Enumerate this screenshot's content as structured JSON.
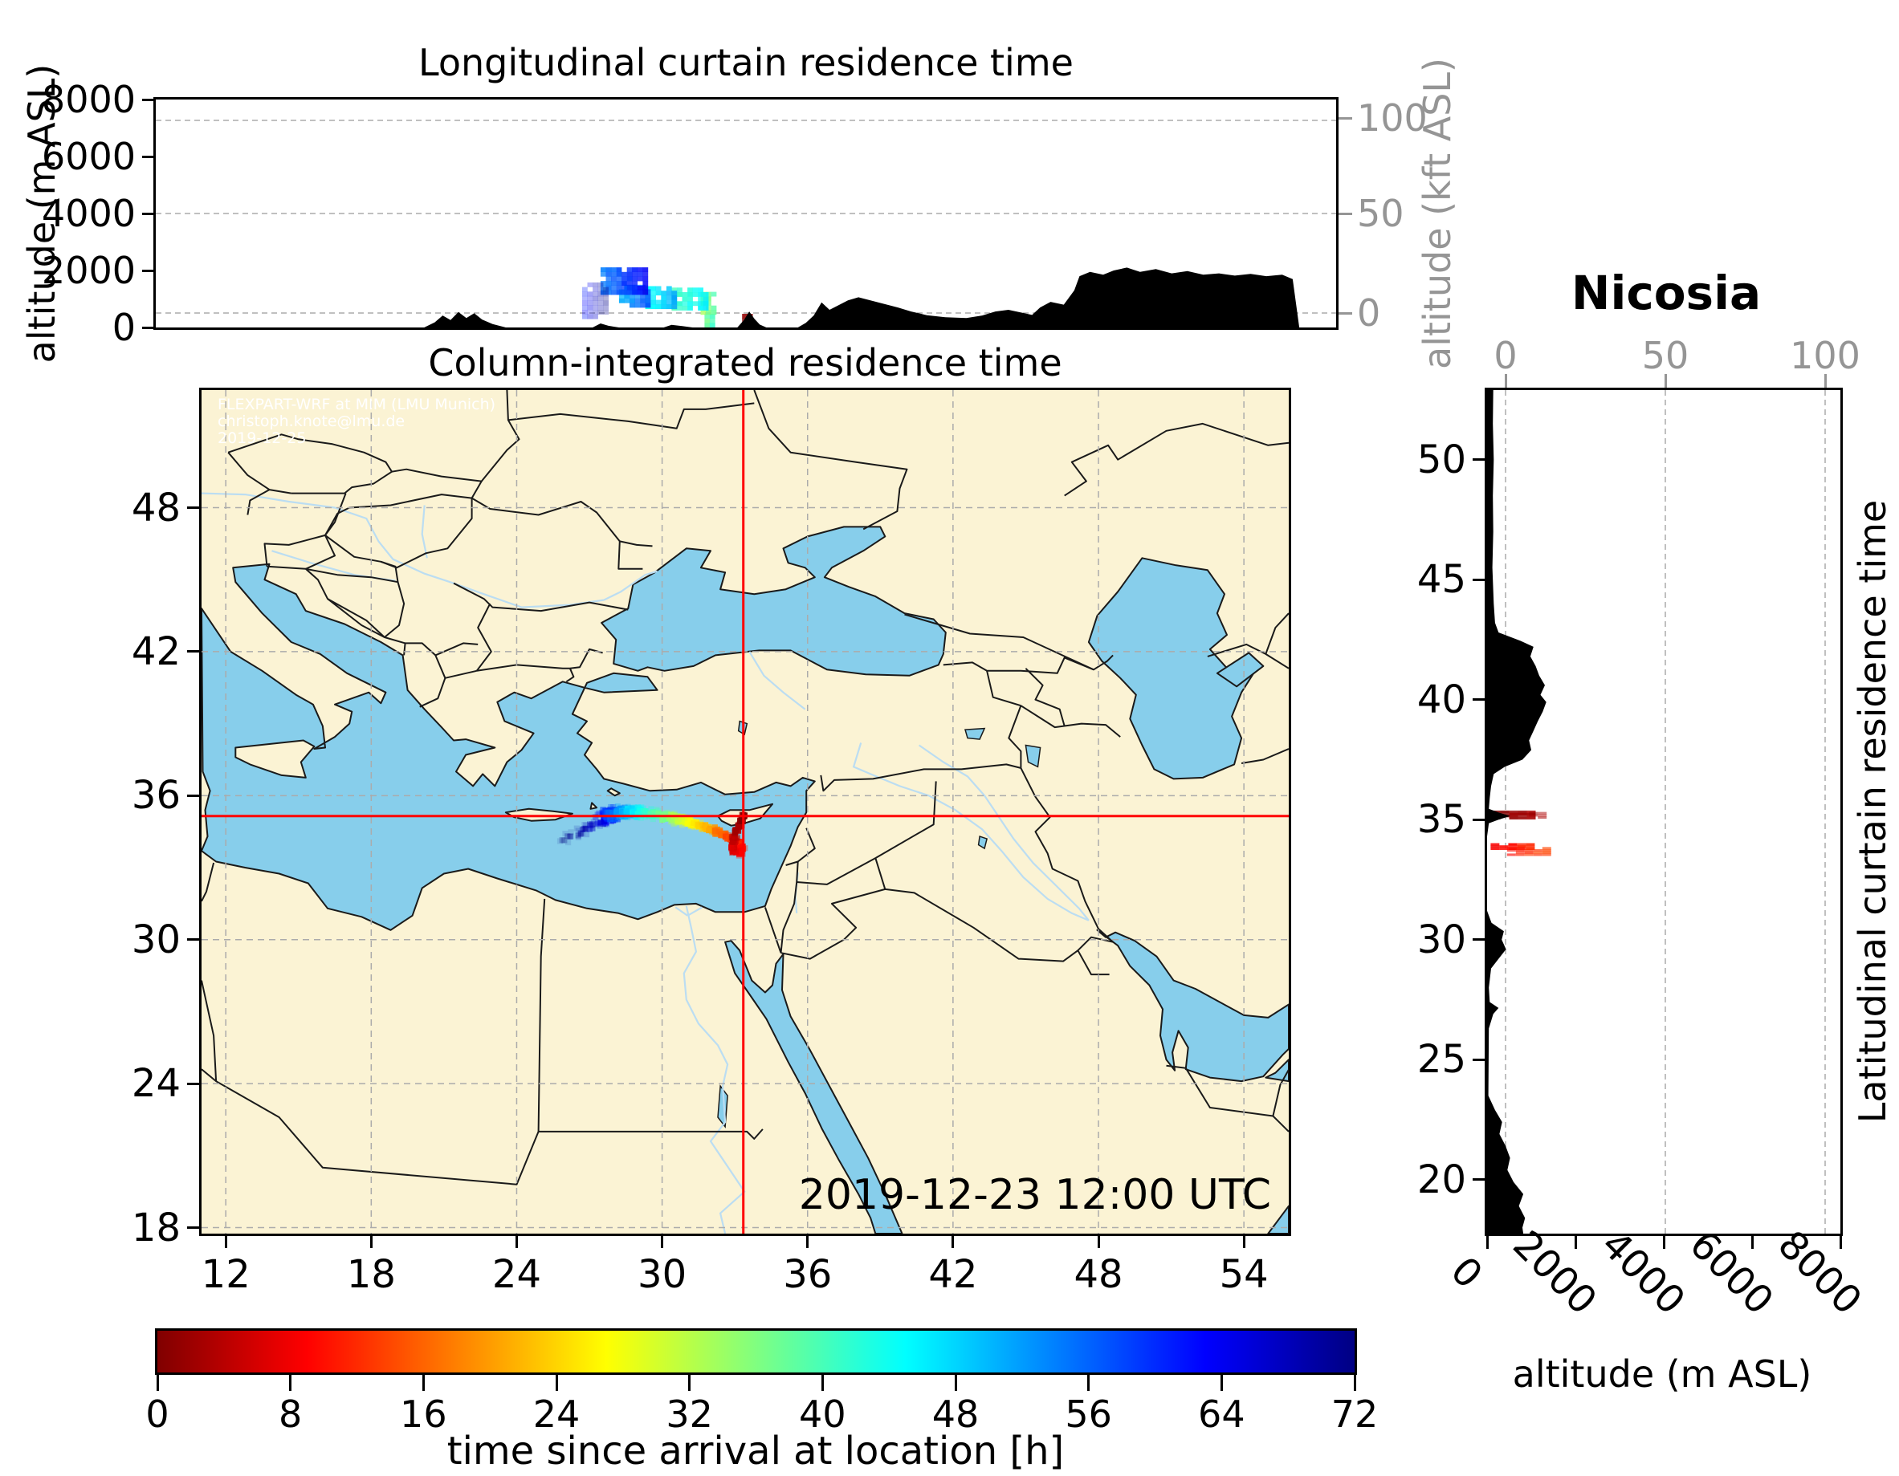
{
  "figure": {
    "station_label": "Nicosia",
    "datetime_label": "2019-12-23 12:00 UTC",
    "watermark_lines": [
      "FLEXPART-WRF at MIM (LMU Munich)",
      "christoph.knote@lmu.de",
      "2019-12-25"
    ]
  },
  "colors": {
    "land": "#FBF3D4",
    "sea": "#87CEEB",
    "river": "#BBDDF2",
    "terrain": "#000000",
    "crosshair_red": "#FF0000",
    "grid_gray": "#ABABAB",
    "secondary_axis_gray": "#959595",
    "border_black": "#1A1A1A"
  },
  "panels": {
    "longitudinal": {
      "title": "Longitudinal curtain residence time",
      "ylabel_left": "altitude (m ASL)",
      "ylabel_right": "altitude (kft ASL)",
      "yticks_left": [
        8000,
        6000,
        4000,
        2000,
        0
      ],
      "yticks_right": [
        100,
        50,
        0
      ],
      "ylim_m": [
        0,
        8000
      ]
    },
    "map": {
      "title": "Column-integrated residence time",
      "xticks": [
        12,
        18,
        24,
        30,
        36,
        42,
        48,
        54
      ],
      "yticks": [
        48,
        42,
        36,
        30,
        24,
        18
      ],
      "lon_range": [
        11.0,
        55.85
      ],
      "lat_range": [
        17.75,
        52.9
      ]
    },
    "latitudinal": {
      "right_label": "Latitudinal curtain residence time",
      "xlabel_bottom": "altitude (m ASL)",
      "xticks_bottom": [
        0,
        2000,
        4000,
        6000,
        8000
      ],
      "xticks_top": [
        0,
        50,
        100
      ],
      "yticks": [
        50,
        45,
        40,
        35,
        30,
        25,
        20
      ],
      "xlim_m": [
        0,
        8000
      ]
    }
  },
  "colorbar": {
    "label": "time since arrival at location [h]",
    "ticks": [
      0,
      8,
      16,
      24,
      32,
      40,
      48,
      56,
      64,
      72
    ],
    "min": 0,
    "max": 72,
    "colormap": "jet_r"
  },
  "chart_data": {
    "type": "trajectory-residence-time",
    "arrival_site": {
      "name": "Nicosia",
      "lon": 33.35,
      "lat": 35.15
    },
    "arrival_time_utc": "2019-12-23 12:00",
    "time_since_arrival_hours_range": [
      0,
      72
    ],
    "crosshair": {
      "lon": 33.35,
      "lat": 35.15
    },
    "trajectory_map": [
      [
        0,
        33.35,
        35.15,
        0.1,
        1
      ],
      [
        1,
        33.27,
        34.97,
        0.12,
        1
      ],
      [
        2,
        33.17,
        34.76,
        0.13,
        1
      ],
      [
        3,
        33.07,
        34.52,
        0.14,
        1
      ],
      [
        4,
        33.0,
        34.3,
        0.15,
        1
      ],
      [
        5,
        32.94,
        34.08,
        0.16,
        1
      ],
      [
        6,
        32.93,
        33.88,
        0.17,
        1
      ],
      [
        7,
        33.0,
        33.7,
        0.19,
        1
      ],
      [
        8.5,
        33.17,
        33.62,
        0.21,
        1
      ],
      [
        10,
        33.26,
        33.8,
        0.21,
        1
      ],
      [
        11,
        33.18,
        34.0,
        0.2,
        1
      ],
      [
        12.5,
        32.95,
        34.12,
        0.2,
        1
      ],
      [
        14,
        32.73,
        34.25,
        0.21,
        1
      ],
      [
        16,
        32.5,
        34.38,
        0.22,
        1
      ],
      [
        18,
        32.27,
        34.5,
        0.23,
        1
      ],
      [
        20,
        32.05,
        34.6,
        0.24,
        1
      ],
      [
        22,
        31.85,
        34.68,
        0.25,
        1
      ],
      [
        24,
        31.63,
        34.76,
        0.26,
        1
      ],
      [
        26,
        31.4,
        34.83,
        0.27,
        1
      ],
      [
        28,
        31.15,
        34.9,
        0.28,
        1
      ],
      [
        30,
        30.9,
        34.96,
        0.29,
        1
      ],
      [
        32,
        30.65,
        35.02,
        0.3,
        1
      ],
      [
        34,
        30.4,
        35.08,
        0.3,
        1
      ],
      [
        36,
        30.15,
        35.13,
        0.31,
        1
      ],
      [
        38,
        29.9,
        35.18,
        0.32,
        1
      ],
      [
        40,
        29.65,
        35.22,
        0.32,
        1
      ],
      [
        42,
        29.4,
        35.26,
        0.33,
        1
      ],
      [
        44,
        29.15,
        35.29,
        0.33,
        1
      ],
      [
        46,
        28.92,
        35.31,
        0.34,
        1
      ],
      [
        48,
        28.7,
        35.32,
        0.35,
        1
      ],
      [
        50,
        28.5,
        35.32,
        0.36,
        1
      ],
      [
        52,
        28.32,
        35.3,
        0.38,
        1
      ],
      [
        54,
        28.15,
        35.28,
        0.4,
        1
      ],
      [
        56,
        28.0,
        35.25,
        0.42,
        1
      ],
      [
        58,
        27.9,
        35.22,
        0.44,
        1
      ],
      [
        60,
        27.85,
        35.2,
        0.45,
        0.95
      ],
      [
        62,
        27.8,
        35.15,
        0.45,
        0.9
      ],
      [
        64,
        27.65,
        35.05,
        0.42,
        0.8
      ],
      [
        66,
        27.4,
        34.9,
        0.38,
        0.6
      ],
      [
        67.5,
        27.1,
        34.75,
        0.35,
        0.5
      ],
      [
        69,
        26.8,
        34.6,
        0.33,
        0.45
      ],
      [
        70,
        26.5,
        34.45,
        0.3,
        0.4
      ],
      [
        71,
        26.2,
        34.3,
        0.28,
        0.35
      ],
      [
        72,
        25.95,
        34.18,
        0.26,
        0.3
      ]
    ],
    "curtain_longitudinal_segments": [
      {
        "lon": [
          33.28,
          33.55
        ],
        "alt": [
          0,
          480
        ],
        "t": [
          0,
          2
        ],
        "opacity": 1.0
      },
      {
        "lon": [
          31.85,
          32.15
        ],
        "alt": [
          0,
          450
        ],
        "t": [
          38,
          42
        ],
        "opacity": 0.95
      },
      {
        "lon": [
          31.7,
          32.25
        ],
        "alt": [
          450,
          1100
        ],
        "t": [
          34,
          40
        ],
        "opacity": 0.95
      },
      {
        "lon": [
          30.6,
          31.8
        ],
        "alt": [
          600,
          1250
        ],
        "t": [
          40,
          46
        ],
        "opacity": 0.95
      },
      {
        "lon": [
          29.6,
          30.7
        ],
        "alt": [
          650,
          1400
        ],
        "t": [
          44,
          52
        ],
        "opacity": 0.95
      },
      {
        "lon": [
          28.6,
          29.7
        ],
        "alt": [
          700,
          1500
        ],
        "t": [
          50,
          58
        ],
        "opacity": 0.95
      },
      {
        "lon": [
          27.9,
          29.6
        ],
        "alt": [
          1150,
          2000
        ],
        "t": [
          54,
          64
        ],
        "opacity": 0.95
      },
      {
        "lon": [
          27.2,
          28.0
        ],
        "alt": [
          300,
          1500
        ],
        "t": [
          62,
          72
        ],
        "opacity": 0.38
      }
    ],
    "curtain_latitudinal_segments": [
      {
        "lat": [
          35.02,
          35.32
        ],
        "alt": [
          100,
          1000
        ],
        "t": [
          0,
          3
        ],
        "opacity": 1.0
      },
      {
        "lat": [
          35.05,
          35.25
        ],
        "alt": [
          950,
          1300
        ],
        "t": [
          2,
          4
        ],
        "opacity": 0.55
      },
      {
        "lat": [
          33.75,
          33.95
        ],
        "alt": [
          80,
          900
        ],
        "t": [
          8,
          12
        ],
        "opacity": 0.95
      },
      {
        "lat": [
          33.5,
          33.78
        ],
        "alt": [
          450,
          1300
        ],
        "t": [
          10,
          14
        ],
        "opacity": 0.75
      }
    ],
    "terrain_longitudinal_m": [
      [
        11,
        0
      ],
      [
        21.2,
        0
      ],
      [
        21.6,
        180
      ],
      [
        21.9,
        420
      ],
      [
        22.2,
        260
      ],
      [
        22.5,
        540
      ],
      [
        22.8,
        330
      ],
      [
        23.1,
        500
      ],
      [
        23.4,
        280
      ],
      [
        23.8,
        120
      ],
      [
        24.3,
        0
      ],
      [
        27.6,
        0
      ],
      [
        27.9,
        140
      ],
      [
        28.2,
        60
      ],
      [
        28.6,
        0
      ],
      [
        30.3,
        0
      ],
      [
        30.6,
        90
      ],
      [
        31.0,
        50
      ],
      [
        31.4,
        0
      ],
      [
        33.1,
        0
      ],
      [
        33.35,
        260
      ],
      [
        33.55,
        560
      ],
      [
        33.75,
        300
      ],
      [
        33.95,
        100
      ],
      [
        34.2,
        0
      ],
      [
        35.4,
        0
      ],
      [
        35.7,
        160
      ],
      [
        36.0,
        420
      ],
      [
        36.3,
        880
      ],
      [
        36.6,
        620
      ],
      [
        36.9,
        760
      ],
      [
        37.3,
        950
      ],
      [
        37.7,
        1060
      ],
      [
        38.2,
        940
      ],
      [
        38.7,
        820
      ],
      [
        39.2,
        700
      ],
      [
        39.7,
        560
      ],
      [
        40.3,
        430
      ],
      [
        41.0,
        360
      ],
      [
        41.8,
        330
      ],
      [
        42.4,
        420
      ],
      [
        42.9,
        560
      ],
      [
        43.4,
        620
      ],
      [
        43.9,
        520
      ],
      [
        44.3,
        440
      ],
      [
        44.6,
        700
      ],
      [
        45.0,
        900
      ],
      [
        45.5,
        800
      ],
      [
        45.9,
        1300
      ],
      [
        46.1,
        1800
      ],
      [
        46.5,
        1950
      ],
      [
        47.0,
        1850
      ],
      [
        47.4,
        2000
      ],
      [
        47.9,
        2100
      ],
      [
        48.4,
        1950
      ],
      [
        49.0,
        2050
      ],
      [
        49.6,
        1900
      ],
      [
        50.2,
        1980
      ],
      [
        50.8,
        1850
      ],
      [
        51.4,
        1900
      ],
      [
        52.0,
        1820
      ],
      [
        52.6,
        1880
      ],
      [
        53.2,
        1800
      ],
      [
        53.8,
        1850
      ],
      [
        54.2,
        1700
      ],
      [
        54.45,
        0
      ],
      [
        55.85,
        0
      ]
    ],
    "terrain_latitudinal_m": [
      [
        52.9,
        140
      ],
      [
        51.5,
        130
      ],
      [
        50,
        150
      ],
      [
        48.5,
        130
      ],
      [
        47,
        140
      ],
      [
        45.5,
        120
      ],
      [
        44,
        150
      ],
      [
        43.2,
        180
      ],
      [
        42.8,
        260
      ],
      [
        42.45,
        760
      ],
      [
        42.2,
        1050
      ],
      [
        41.8,
        980
      ],
      [
        41.4,
        1100
      ],
      [
        41.0,
        1180
      ],
      [
        40.6,
        1310
      ],
      [
        40.2,
        1210
      ],
      [
        39.9,
        1340
      ],
      [
        39.5,
        1260
      ],
      [
        39.1,
        1150
      ],
      [
        38.7,
        1050
      ],
      [
        38.3,
        950
      ],
      [
        37.9,
        1000
      ],
      [
        37.5,
        800
      ],
      [
        37.2,
        400
      ],
      [
        36.9,
        150
      ],
      [
        36.4,
        90
      ],
      [
        35.9,
        60
      ],
      [
        35.45,
        40
      ],
      [
        35.3,
        260
      ],
      [
        35.15,
        520
      ],
      [
        35.0,
        260
      ],
      [
        34.85,
        40
      ],
      [
        34.3,
        0
      ],
      [
        31.2,
        0
      ],
      [
        30.7,
        100
      ],
      [
        30.35,
        380
      ],
      [
        30.0,
        330
      ],
      [
        29.6,
        430
      ],
      [
        29.2,
        260
      ],
      [
        28.8,
        90
      ],
      [
        28.0,
        40
      ],
      [
        27.4,
        60
      ],
      [
        27.15,
        260
      ],
      [
        26.9,
        140
      ],
      [
        26.3,
        40
      ],
      [
        23.5,
        30
      ],
      [
        22.9,
        180
      ],
      [
        22.4,
        340
      ],
      [
        21.9,
        280
      ],
      [
        21.4,
        420
      ],
      [
        20.9,
        520
      ],
      [
        20.4,
        460
      ],
      [
        19.9,
        600
      ],
      [
        19.4,
        820
      ],
      [
        18.9,
        720
      ],
      [
        18.4,
        860
      ],
      [
        18.0,
        800
      ],
      [
        17.75,
        820
      ]
    ]
  }
}
